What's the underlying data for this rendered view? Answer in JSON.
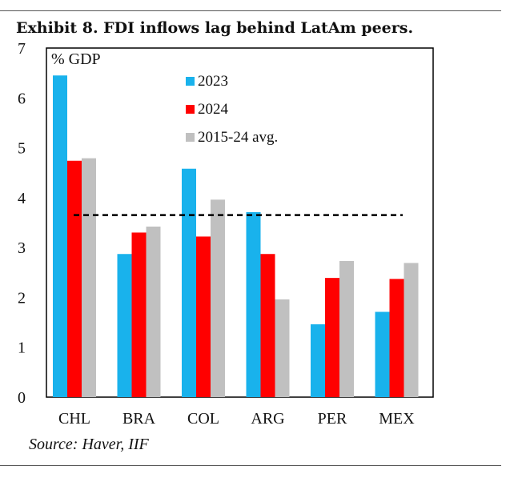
{
  "title": "Exhibit 8. FDI inflows lag behind LatAm peers.",
  "source": "Source: Haver, IIF",
  "colors": {
    "2023": "#19b2ec",
    "2024": "#ff0000",
    "avg": "#c0c0c0"
  },
  "chart_data": {
    "type": "bar",
    "ylabel": "% GDP",
    "ylim": [
      0,
      7
    ],
    "yticks": [
      0,
      1,
      2,
      3,
      4,
      5,
      6,
      7
    ],
    "categories": [
      "CHL",
      "BRA",
      "COL",
      "ARG",
      "PER",
      "MEX"
    ],
    "series": [
      {
        "name": "2023",
        "values": [
          6.45,
          2.87,
          4.58,
          3.71,
          1.46,
          1.71
        ]
      },
      {
        "name": "2024",
        "values": [
          4.74,
          3.3,
          3.22,
          2.87,
          2.39,
          2.37
        ]
      },
      {
        "name": "2015-24 avg.",
        "values": [
          4.79,
          3.42,
          3.96,
          1.96,
          2.73,
          2.69
        ]
      }
    ],
    "reference_line": {
      "style": "dashed",
      "value": 3.65
    }
  }
}
